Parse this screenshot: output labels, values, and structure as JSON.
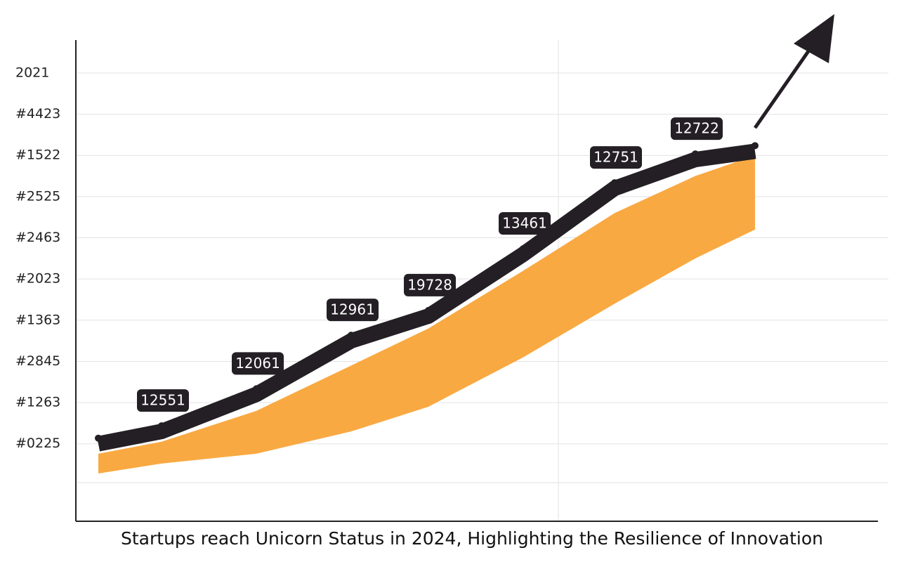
{
  "chart_data": {
    "type": "area",
    "title": "Startups reach Unicorn Status in 2024, Highlighting the Resilience of Innovation",
    "ylim": [
      -0.88,
      10.8
    ],
    "yticks": [
      {
        "value": 10,
        "label": "2021"
      },
      {
        "value": 9,
        "label": "#4423"
      },
      {
        "value": 8,
        "label": "#1522"
      },
      {
        "value": 7,
        "label": "#2525"
      },
      {
        "value": 6,
        "label": "#2463"
      },
      {
        "value": 5,
        "label": "#2023"
      },
      {
        "value": 4,
        "label": "#1363"
      },
      {
        "value": 3,
        "label": "#2845"
      },
      {
        "value": 2,
        "label": "#1263"
      },
      {
        "value": 1,
        "label": "#0225"
      }
    ],
    "grid": true,
    "series": [
      {
        "color": "#231f24",
        "values": [
          1.0,
          1.3,
          2.2,
          3.5,
          4.1,
          5.6,
          7.2,
          7.9,
          8.1
        ]
      },
      {
        "color": "#f9a942",
        "values": [
          0.76,
          1.05,
          1.8,
          2.9,
          3.8,
          5.2,
          6.6,
          7.5,
          8.0
        ]
      },
      {
        "color": "#f9a942",
        "values": [
          0.28,
          0.52,
          0.76,
          1.3,
          1.9,
          3.1,
          4.4,
          5.5,
          6.2
        ]
      }
    ],
    "annotations": [
      null,
      "12551",
      "12061",
      "12961",
      "19728",
      "13461",
      "12751",
      "12722",
      null
    ]
  }
}
